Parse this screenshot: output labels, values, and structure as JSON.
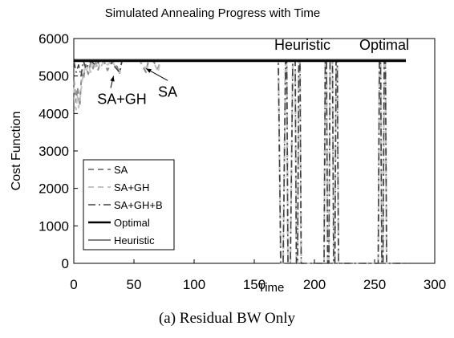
{
  "chart_data": {
    "type": "line",
    "title": "Simulated Annealing Progress with Time",
    "xlabel": "Time",
    "ylabel": "Cost Function",
    "xlim": [
      0,
      300
    ],
    "ylim": [
      0,
      6000
    ],
    "xticks": [
      0,
      50,
      100,
      150,
      200,
      250,
      300
    ],
    "yticks": [
      0,
      1000,
      2000,
      3000,
      4000,
      5000,
      6000
    ],
    "grid": false,
    "legend_position": "bottom-left",
    "series": [
      {
        "name": "SA",
        "color": "#8a8a8a",
        "style": "dash",
        "x": [
          0,
          1,
          2,
          3,
          4,
          5,
          6,
          7,
          8,
          9,
          10,
          12,
          14,
          16,
          18,
          20,
          22,
          25,
          28,
          32,
          36,
          38,
          40,
          45,
          55,
          60,
          62,
          64,
          66,
          70,
          72,
          74,
          80,
          100,
          130,
          160,
          170,
          172,
          174,
          176,
          177,
          178,
          180,
          182,
          184,
          185,
          186,
          187,
          188,
          189,
          190,
          200,
          208,
          209,
          210,
          211,
          212,
          213,
          215,
          216,
          217,
          218,
          219,
          220,
          221,
          222,
          230,
          245,
          253,
          254,
          255,
          256,
          257,
          258,
          259,
          260,
          262,
          270,
          276
        ],
        "y": [
          4900,
          4600,
          4300,
          4700,
          4500,
          4200,
          4800,
          5050,
          4900,
          5150,
          5300,
          5050,
          5350,
          5200,
          5400,
          5150,
          5350,
          5400,
          5150,
          5400,
          5250,
          5050,
          5400,
          5400,
          5400,
          5100,
          5400,
          5400,
          5400,
          5200,
          5400,
          5400,
          5400,
          5400,
          5400,
          5400,
          5400,
          0,
          0,
          5400,
          5400,
          0,
          0,
          5400,
          5400,
          0,
          0,
          5400,
          5400,
          0,
          0,
          0,
          0,
          5400,
          5400,
          0,
          0,
          5400,
          5400,
          0,
          0,
          5400,
          5400,
          0,
          0,
          0,
          0,
          0,
          0,
          5400,
          5400,
          0,
          0,
          5400,
          5400,
          0,
          0,
          0,
          0
        ]
      },
      {
        "name": "SA+GH",
        "color": "#c4c4c4",
        "style": "dash",
        "x": [
          0,
          1,
          2,
          3,
          4,
          5,
          6,
          7,
          8,
          9,
          10,
          12,
          14,
          16,
          18,
          20,
          22,
          25,
          28,
          32,
          36,
          38,
          40,
          45,
          55,
          60,
          62,
          64,
          66,
          70,
          72,
          74,
          80,
          100,
          130,
          160,
          170,
          172,
          174,
          176,
          177,
          178,
          180,
          182,
          184,
          185,
          186,
          187,
          188,
          189,
          190,
          200,
          208,
          209,
          210,
          211,
          212,
          213,
          215,
          216,
          217,
          218,
          219,
          220,
          221,
          222,
          230,
          245,
          253,
          254,
          255,
          256,
          257,
          258,
          259,
          260,
          262,
          270,
          276
        ],
        "y": [
          4700,
          4200,
          4100,
          4500,
          4150,
          4300,
          4600,
          4900,
          5000,
          5200,
          5100,
          5300,
          5100,
          5400,
          5250,
          5400,
          5200,
          5400,
          5300,
          5400,
          5150,
          5100,
          5400,
          5400,
          5400,
          5200,
          5400,
          5400,
          5400,
          5100,
          5400,
          5400,
          5400,
          5400,
          5400,
          5400,
          5400,
          0,
          0,
          5400,
          5400,
          0,
          0,
          5400,
          5400,
          0,
          0,
          5400,
          5400,
          0,
          0,
          0,
          0,
          5400,
          5400,
          0,
          0,
          5400,
          5400,
          0,
          0,
          5400,
          5400,
          0,
          0,
          0,
          0,
          0,
          0,
          5400,
          5400,
          0,
          0,
          5400,
          5400,
          0,
          0,
          0,
          0
        ]
      },
      {
        "name": "SA+GH+B",
        "color": "#404040",
        "style": "dashdot",
        "x": [
          0,
          2,
          4,
          6,
          8,
          10,
          14,
          18,
          22,
          30,
          38,
          40,
          60,
          100,
          170,
          172,
          174,
          176,
          177,
          178,
          180,
          182,
          184,
          185,
          186,
          187,
          188,
          189,
          190,
          200,
          208,
          209,
          210,
          211,
          212,
          213,
          215,
          216,
          217,
          218,
          219,
          220,
          221,
          222,
          230,
          245,
          253,
          254,
          255,
          256,
          257,
          258,
          259,
          260,
          262,
          270,
          276
        ],
        "y": [
          5400,
          5100,
          5300,
          5000,
          5400,
          5200,
          5400,
          5300,
          5400,
          5400,
          5100,
          5400,
          5400,
          5400,
          5400,
          0,
          0,
          5400,
          5400,
          0,
          0,
          5400,
          5400,
          0,
          0,
          5400,
          5400,
          0,
          0,
          0,
          0,
          5400,
          5400,
          0,
          0,
          5400,
          5400,
          0,
          0,
          5400,
          5400,
          0,
          0,
          0,
          0,
          0,
          0,
          5400,
          5400,
          0,
          0,
          5400,
          5400,
          0,
          0,
          0,
          0
        ]
      },
      {
        "name": "Optimal",
        "color": "#000000",
        "style": "thick",
        "x": [
          0,
          276
        ],
        "y": [
          5400,
          5400
        ]
      },
      {
        "name": "Heuristic",
        "color": "#000000",
        "style": "thin",
        "x": [
          0,
          276
        ],
        "y": [
          5440,
          5440
        ]
      }
    ],
    "annotations": [
      {
        "text": "Heuristic",
        "x": 190,
        "y": 5700
      },
      {
        "text": "Optimal",
        "x": 258,
        "y": 5700
      },
      {
        "text": "SA+GH",
        "x": 40,
        "y": 4250,
        "arrow_to": [
          33,
          5000
        ]
      },
      {
        "text": "SA",
        "x": 78,
        "y": 4450,
        "arrow_to": [
          60,
          5200
        ]
      }
    ]
  },
  "caption": "(a) Residual BW Only"
}
